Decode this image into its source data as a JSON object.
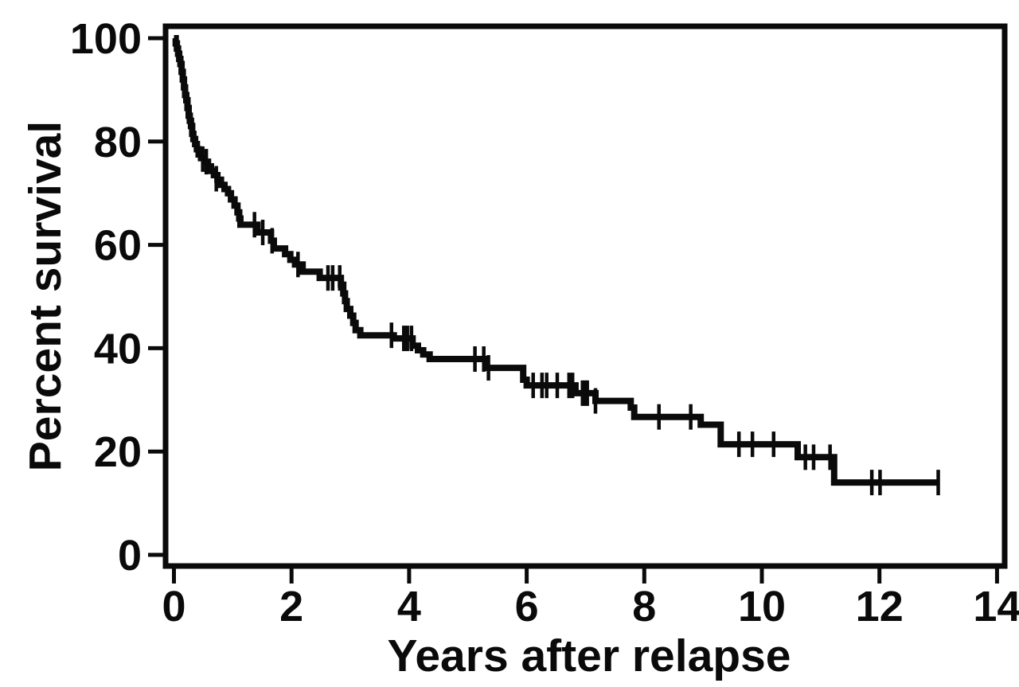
{
  "figure": {
    "background_color": "#ffffff",
    "ink_color": "#0a0a0a"
  },
  "chart_data": {
    "type": "line",
    "subtype": "kaplan-meier-step-curve",
    "title": "",
    "xlabel": "Years after relapse",
    "ylabel": "Percent survival",
    "xlim": [
      0,
      14
    ],
    "ylim": [
      0,
      100
    ],
    "x_ticks": [
      0,
      2,
      4,
      6,
      8,
      10,
      12,
      14
    ],
    "y_ticks": [
      0,
      20,
      40,
      60,
      80,
      100
    ],
    "grid": false,
    "legend": "none",
    "curve_color": "#0a0a0a",
    "end_year": 13.0,
    "steps": [
      [
        0.0,
        100
      ],
      [
        0.03,
        99
      ],
      [
        0.05,
        98
      ],
      [
        0.07,
        97
      ],
      [
        0.09,
        96
      ],
      [
        0.11,
        95
      ],
      [
        0.13,
        93.5
      ],
      [
        0.15,
        92
      ],
      [
        0.17,
        90.5
      ],
      [
        0.19,
        89
      ],
      [
        0.21,
        88
      ],
      [
        0.23,
        86.5
      ],
      [
        0.25,
        85
      ],
      [
        0.27,
        84
      ],
      [
        0.29,
        83
      ],
      [
        0.31,
        81.5
      ],
      [
        0.33,
        80.5
      ],
      [
        0.36,
        79.5
      ],
      [
        0.39,
        78.5
      ],
      [
        0.42,
        77.5
      ],
      [
        0.46,
        76.8
      ],
      [
        0.52,
        76.1
      ],
      [
        0.58,
        75.2
      ],
      [
        0.63,
        74.3
      ],
      [
        0.68,
        73.5
      ],
      [
        0.74,
        72.6
      ],
      [
        0.8,
        71.6
      ],
      [
        0.86,
        70.8
      ],
      [
        0.92,
        70.0
      ],
      [
        0.97,
        68.8
      ],
      [
        1.03,
        67.6
      ],
      [
        1.08,
        66.3
      ],
      [
        1.11,
        65.1
      ],
      [
        1.13,
        63.9
      ],
      [
        1.42,
        62.4
      ],
      [
        1.65,
        60.8
      ],
      [
        1.7,
        59.3
      ],
      [
        1.89,
        58.2
      ],
      [
        1.98,
        57.1
      ],
      [
        2.06,
        56.2
      ],
      [
        2.19,
        54.8
      ],
      [
        2.48,
        53.6
      ],
      [
        2.84,
        52.3
      ],
      [
        2.88,
        50.6
      ],
      [
        2.91,
        49.1
      ],
      [
        2.94,
        47.6
      ],
      [
        3.0,
        46.3
      ],
      [
        3.05,
        44.9
      ],
      [
        3.09,
        43.5
      ],
      [
        3.17,
        42.5
      ],
      [
        3.74,
        41.9
      ],
      [
        4.06,
        40.5
      ],
      [
        4.15,
        39.6
      ],
      [
        4.24,
        38.8
      ],
      [
        4.35,
        37.9
      ],
      [
        5.3,
        36.2
      ],
      [
        5.94,
        33.9
      ],
      [
        6.0,
        32.8
      ],
      [
        6.83,
        31.3
      ],
      [
        7.17,
        29.8
      ],
      [
        7.77,
        28.5
      ],
      [
        7.83,
        26.7
      ],
      [
        8.96,
        25.2
      ],
      [
        9.3,
        21.4
      ],
      [
        10.61,
        18.9
      ],
      [
        11.23,
        14.0
      ]
    ],
    "censor_marks": [
      [
        0.49,
        76.6
      ],
      [
        0.55,
        76.1
      ],
      [
        0.72,
        72.8
      ],
      [
        1.37,
        63.9
      ],
      [
        1.51,
        62.4
      ],
      [
        1.67,
        60.8
      ],
      [
        2.11,
        56.2
      ],
      [
        2.62,
        53.6
      ],
      [
        2.7,
        53.6
      ],
      [
        2.82,
        53.6
      ],
      [
        3.7,
        42.5
      ],
      [
        3.91,
        41.9
      ],
      [
        3.97,
        41.9
      ],
      [
        4.04,
        41.9
      ],
      [
        5.12,
        37.9
      ],
      [
        5.27,
        37.9
      ],
      [
        5.35,
        36.2
      ],
      [
        6.11,
        32.8
      ],
      [
        6.26,
        32.8
      ],
      [
        6.34,
        32.8
      ],
      [
        6.52,
        32.8
      ],
      [
        6.72,
        32.8
      ],
      [
        6.78,
        32.8
      ],
      [
        6.95,
        31.3
      ],
      [
        6.99,
        31.3
      ],
      [
        7.03,
        31.3
      ],
      [
        7.17,
        29.8
      ],
      [
        8.25,
        26.7
      ],
      [
        8.79,
        26.7
      ],
      [
        9.61,
        21.4
      ],
      [
        9.84,
        21.4
      ],
      [
        10.2,
        21.4
      ],
      [
        10.74,
        18.9
      ],
      [
        10.88,
        18.9
      ],
      [
        11.16,
        18.9
      ],
      [
        11.87,
        14.0
      ],
      [
        12.01,
        14.0
      ],
      [
        13.0,
        14.0
      ]
    ]
  }
}
